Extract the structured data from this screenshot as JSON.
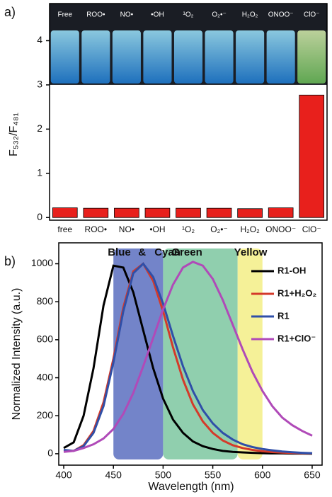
{
  "chart_data": [
    {
      "type": "bar",
      "panel_label": "a)",
      "ylabel": "F₅₃₂/F₄₈₁",
      "categories": [
        "free",
        "ROO•",
        "NO•",
        "•OH",
        "¹O₂",
        "O₂•⁻",
        "H₂O₂",
        "ONOO⁻",
        "ClO⁻"
      ],
      "values": [
        0.22,
        0.21,
        0.21,
        0.21,
        0.21,
        0.21,
        0.2,
        0.22,
        2.77
      ],
      "color": "#e8201c",
      "ylim": [
        -0.06,
        4.84
      ],
      "yticks": [
        0,
        1,
        2,
        3,
        4
      ],
      "inset_labels": [
        "Free",
        "ROO•",
        "NO•",
        "•OH",
        "¹O₂",
        "O₂•⁻",
        "H₂O₂",
        "ONOO⁻",
        "ClO⁻"
      ]
    },
    {
      "type": "line",
      "panel_label": "b)",
      "xlabel": "Wavelength (nm)",
      "ylabel": "Normalized Intensity (a.u.)",
      "x": [
        400,
        410,
        420,
        430,
        440,
        450,
        460,
        470,
        480,
        490,
        500,
        510,
        520,
        530,
        540,
        550,
        560,
        570,
        580,
        590,
        600,
        610,
        620,
        630,
        640,
        650
      ],
      "series": [
        {
          "name": "R1-OH",
          "color": "#000000",
          "values": [
            30,
            60,
            200,
            450,
            780,
            990,
            980,
            850,
            650,
            450,
            290,
            180,
            110,
            65,
            40,
            25,
            15,
            10,
            7,
            5,
            3,
            2,
            2,
            1,
            1,
            0
          ]
        },
        {
          "name": "R1+H₂O₂",
          "color": "#d43a2a",
          "values": [
            15,
            15,
            45,
            120,
            270,
            500,
            770,
            960,
            1000,
            910,
            750,
            560,
            390,
            260,
            170,
            110,
            70,
            45,
            30,
            20,
            13,
            9,
            6,
            4,
            3,
            2
          ]
        },
        {
          "name": "R1",
          "color": "#2f4fa8",
          "values": [
            20,
            15,
            40,
            110,
            250,
            480,
            750,
            950,
            1000,
            930,
            790,
            620,
            460,
            330,
            230,
            160,
            110,
            75,
            50,
            35,
            25,
            18,
            12,
            8,
            5,
            3
          ]
        },
        {
          "name": "R1+ClO⁻",
          "color": "#b04ab8",
          "values": [
            10,
            15,
            30,
            50,
            80,
            130,
            210,
            320,
            460,
            610,
            760,
            890,
            980,
            1010,
            990,
            920,
            810,
            680,
            550,
            430,
            330,
            250,
            190,
            150,
            120,
            95
          ]
        }
      ],
      "bands": [
        {
          "from": 450,
          "to": 500,
          "color": "#5a6fc0"
        },
        {
          "from": 500,
          "to": 575,
          "color": "#7cc7a0"
        },
        {
          "from": 575,
          "to": 600,
          "color": "#f3ef86"
        }
      ],
      "band_labels": [
        {
          "text": "Blue",
          "color": "#3b56ad"
        },
        {
          "text": "&",
          "color": "#111111"
        },
        {
          "text": "Cyan",
          "color": "#2fb7c9"
        },
        {
          "text": "Green",
          "color": "#3a9a5a"
        },
        {
          "text": "Yellow",
          "color": "#eee33a"
        }
      ],
      "xlim": [
        395,
        660
      ],
      "xticks": [
        400,
        450,
        500,
        550,
        600,
        650
      ],
      "ylim": [
        -60,
        1110
      ],
      "yticks": [
        0,
        200,
        400,
        600,
        800,
        1000
      ],
      "legend": "upper right"
    }
  ]
}
